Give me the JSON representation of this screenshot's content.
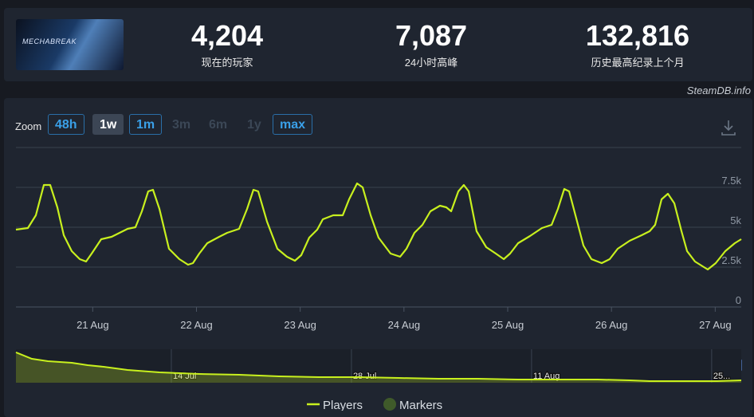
{
  "game": {
    "logo": "MECHABREAK"
  },
  "stats": [
    {
      "value": "4,204",
      "label": "现在的玩家"
    },
    {
      "value": "7,087",
      "label": "24小时高峰"
    },
    {
      "value": "132,816",
      "label": "历史最高纪录上个月"
    }
  ],
  "source": "SteamDB.info",
  "zoom": {
    "label": "Zoom",
    "options": [
      {
        "label": "48h",
        "state": "enabled"
      },
      {
        "label": "1w",
        "state": "active"
      },
      {
        "label": "1m",
        "state": "enabled"
      },
      {
        "label": "3m",
        "state": "disabled"
      },
      {
        "label": "6m",
        "state": "disabled"
      },
      {
        "label": "1y",
        "state": "disabled"
      },
      {
        "label": "max",
        "state": "enabled"
      }
    ]
  },
  "legend": [
    {
      "name": "Players",
      "color": "#c8f01e"
    },
    {
      "name": "Markers",
      "color": "#3f5a2a"
    }
  ],
  "chart_data": [
    {
      "type": "line",
      "x": [
        20.26,
        20.375,
        20.452,
        20.529,
        20.59,
        20.659,
        20.721,
        20.798,
        20.875,
        20.936,
        20.99,
        21.082,
        21.182,
        21.259,
        21.336,
        21.412,
        21.474,
        21.535,
        21.581,
        21.643,
        21.735,
        21.835,
        21.919,
        21.966,
        22.027,
        22.104,
        22.219,
        22.296,
        22.411,
        22.488,
        22.549,
        22.595,
        22.68,
        22.78,
        22.872,
        22.949,
        23.01,
        23.087,
        23.164,
        23.218,
        23.318,
        23.41,
        23.471,
        23.548,
        23.602,
        23.679,
        23.755,
        23.871,
        23.963,
        24.024,
        24.101,
        24.178,
        24.255,
        24.347,
        24.408,
        24.455,
        24.524,
        24.577,
        24.624,
        24.7,
        24.793,
        24.885,
        24.962,
        25.023,
        25.1,
        25.215,
        25.33,
        25.423,
        25.484,
        25.545,
        25.592,
        25.653,
        25.73,
        25.807,
        25.906,
        25.983,
        26.06,
        26.175,
        26.291,
        26.368,
        26.421,
        26.483,
        26.544,
        26.606,
        26.675,
        26.729,
        26.805,
        26.928,
        27.005,
        27.097,
        27.189,
        27.251
      ],
      "series": [
        {
          "name": "Players",
          "color": "#c8f01e",
          "values": [
            4850,
            4950,
            5750,
            7650,
            7650,
            6250,
            4500,
            3500,
            3000,
            2850,
            3350,
            4250,
            4400,
            4650,
            4900,
            5000,
            6000,
            7250,
            7350,
            6150,
            3650,
            3000,
            2650,
            2750,
            3350,
            4000,
            4400,
            4650,
            4900,
            6150,
            7350,
            7250,
            5350,
            3650,
            3150,
            2900,
            3250,
            4350,
            4850,
            5500,
            5750,
            5750,
            6750,
            7750,
            7500,
            5750,
            4350,
            3350,
            3150,
            3650,
            4650,
            5150,
            6000,
            6350,
            6250,
            6000,
            7250,
            7650,
            7250,
            4750,
            3750,
            3350,
            3000,
            3350,
            4000,
            4450,
            4950,
            5150,
            6150,
            7400,
            7250,
            5750,
            3850,
            3000,
            2750,
            3000,
            3650,
            4150,
            4500,
            4750,
            5150,
            6750,
            7100,
            6500,
            4750,
            3500,
            2850,
            2350,
            2750,
            3500,
            4000,
            4250
          ]
        }
      ],
      "xlim": [
        20.26,
        27.251
      ],
      "xticks": [
        {
          "value": 21,
          "label": "21 Aug"
        },
        {
          "value": 22,
          "label": "22 Aug"
        },
        {
          "value": 23,
          "label": "23 Aug"
        },
        {
          "value": 24,
          "label": "24 Aug"
        },
        {
          "value": 25,
          "label": "25 Aug"
        },
        {
          "value": 26,
          "label": "26 Aug"
        },
        {
          "value": 27,
          "label": "27 Aug"
        }
      ],
      "ylim": [
        0,
        10000
      ],
      "yticks": [
        0,
        {
          "value": 2500,
          "label": "2.5k"
        },
        {
          "value": 5000,
          "label": "5k"
        },
        {
          "value": 7500,
          "label": "7.5k"
        }
      ],
      "grid": true
    },
    {
      "type": "area",
      "x": [
        182.92,
        184.16,
        185.4,
        187.26,
        188.49,
        189.73,
        191.59,
        194.07,
        197.17,
        200.27,
        203.36,
        206.46,
        209.56,
        212.66,
        215.76,
        218.85,
        221.95,
        225.05,
        228.15,
        230.63,
        232.17,
        234.34,
        237.44,
        239.3
      ],
      "series": [
        {
          "name": "Players",
          "color": "#c8f01e",
          "values": [
            72400,
            57100,
            51400,
            47600,
            41900,
            38100,
            30500,
            24800,
            21000,
            19000,
            15200,
            13300,
            13300,
            11400,
            9500,
            9500,
            7600,
            7600,
            7600,
            5700,
            3800,
            3800,
            3800,
            5700
          ]
        }
      ],
      "xlim": [
        182.92,
        239.3
      ],
      "xticks": [
        {
          "value": 195,
          "label": "14 Jul"
        },
        {
          "value": 209,
          "label": "28 Jul"
        },
        {
          "value": 223,
          "label": "11 Aug"
        },
        {
          "value": 237,
          "label": "25..."
        }
      ],
      "ylim": [
        0,
        80000
      ]
    }
  ]
}
